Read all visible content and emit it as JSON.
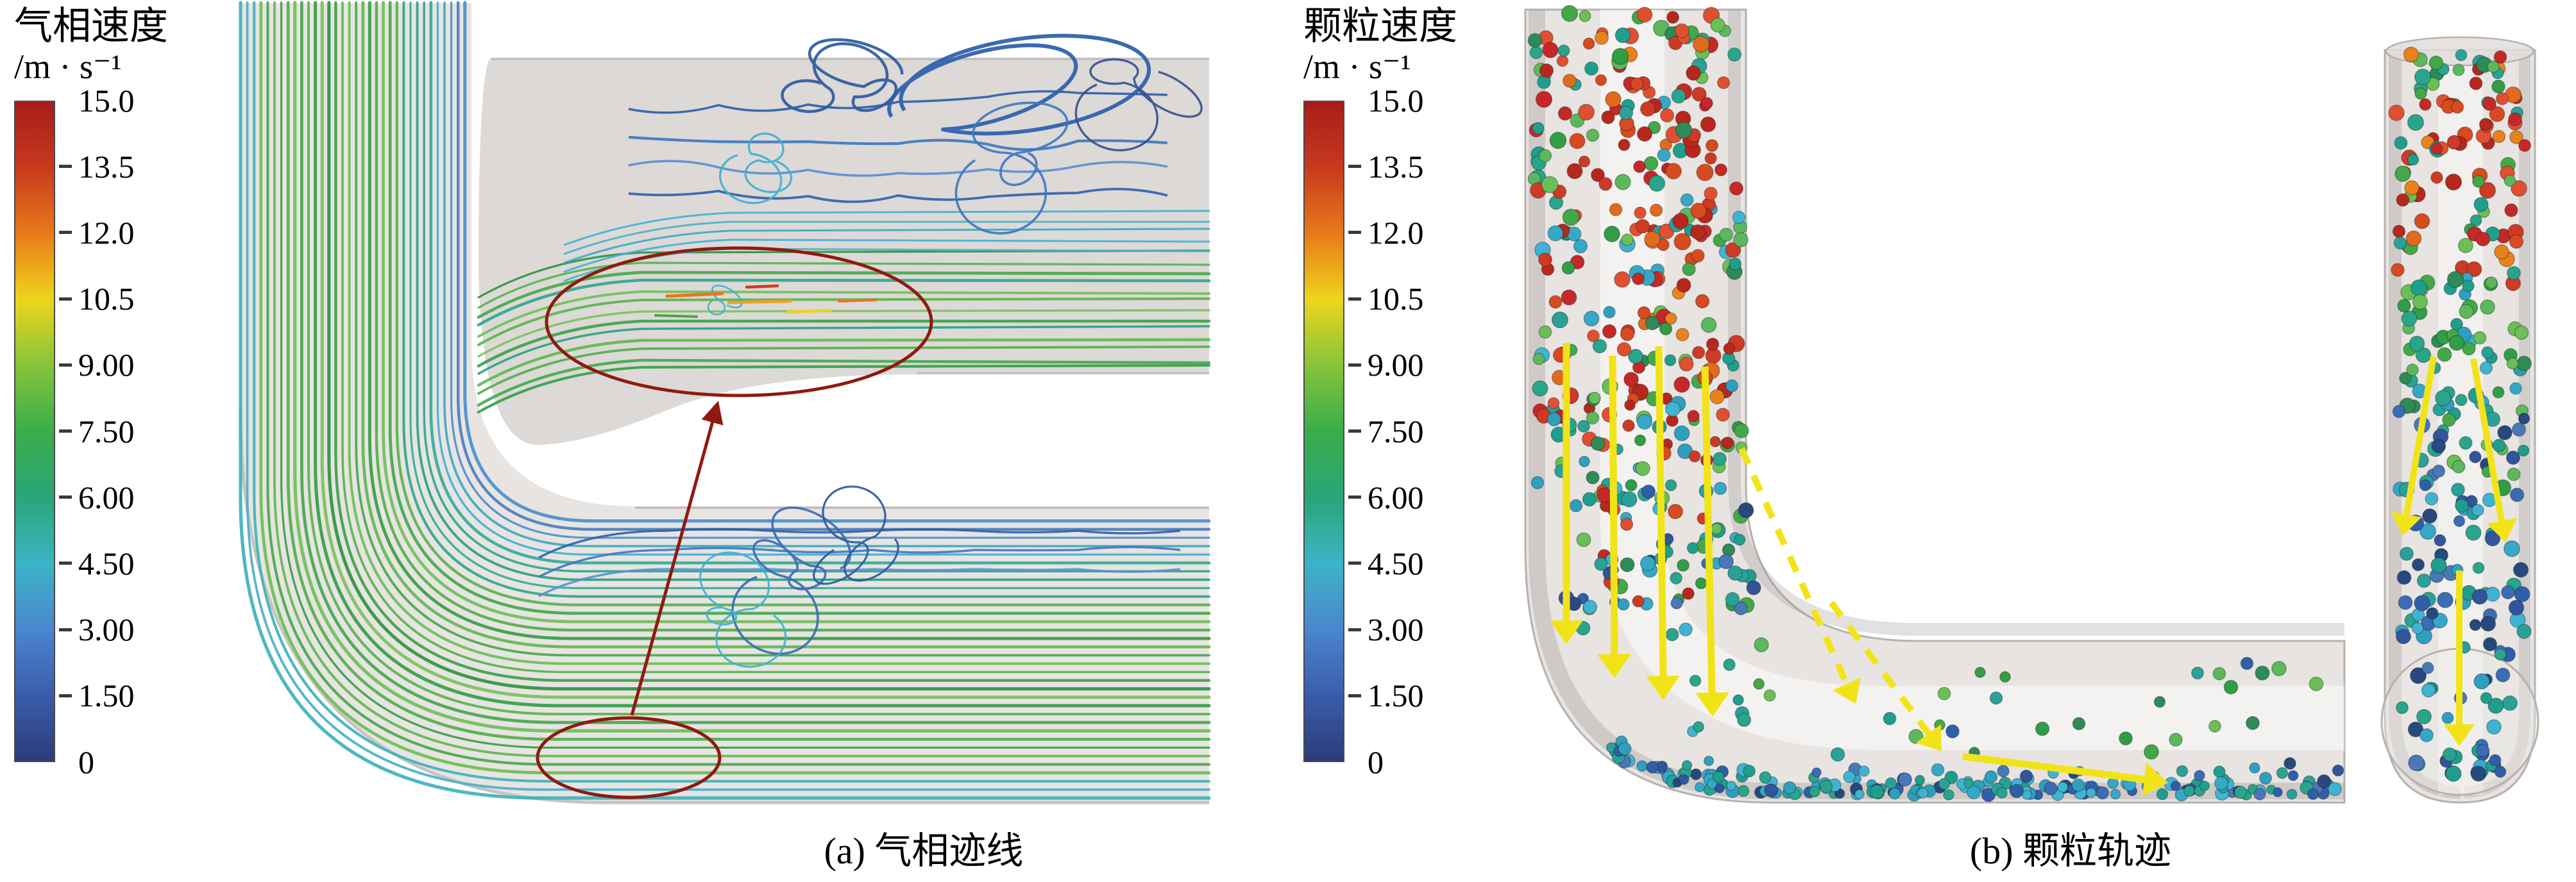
{
  "figure": {
    "panels": [
      {
        "name": "gas-streamlines",
        "caption": "(a) 气相迹线",
        "colorbar": {
          "title": "气相速度",
          "units": "/m · s⁻¹",
          "range_max": "15.0",
          "range_min": "0",
          "ticks": [
            "15.0",
            "13.5",
            "12.0",
            "10.5",
            "9.00",
            "7.50",
            "6.00",
            "4.50",
            "3.00",
            "1.50",
            "0"
          ],
          "colors_top_to_bottom": [
            "#a81d19",
            "#c73a1e",
            "#e87a1a",
            "#eed51b",
            "#86c43b",
            "#3aad4a",
            "#2aa578",
            "#3cb4c6",
            "#4a86cf",
            "#3b5cab",
            "#2b3c7a"
          ]
        }
      },
      {
        "name": "particle-trajectories",
        "caption": "(b) 颗粒轨迹",
        "colorbar": {
          "title": "颗粒速度",
          "units": "/m · s⁻¹",
          "range_max": "15.0",
          "range_min": "0",
          "ticks": [
            "15.0",
            "13.5",
            "12.0",
            "10.5",
            "9.00",
            "7.50",
            "6.00",
            "4.50",
            "3.00",
            "1.50",
            "0"
          ],
          "colors_top_to_bottom": [
            "#a81d19",
            "#c73a1e",
            "#e87a1a",
            "#eed51b",
            "#86c43b",
            "#3aad4a",
            "#2aa578",
            "#3cb4c6",
            "#4a86cf",
            "#3b5cab",
            "#2b3c7a"
          ]
        }
      }
    ],
    "styles": {
      "annotation_red": "#8f1a10",
      "arrow_yellow": "#f2e319",
      "pipe_gray": "#e7e4e2",
      "background": "#ffffff"
    }
  }
}
